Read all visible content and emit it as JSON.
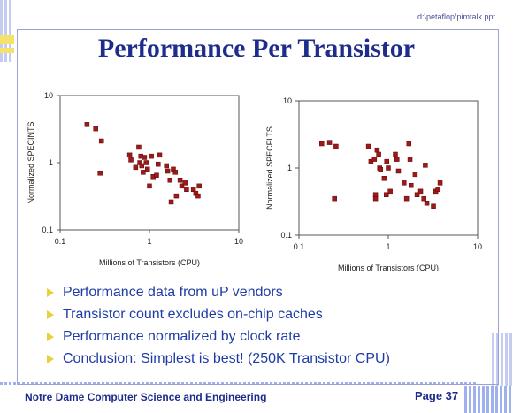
{
  "header": {
    "filename": "d:\\petaflop\\pimtalk.ppt",
    "title": "Performance Per Transistor"
  },
  "chart_data": [
    {
      "type": "scatter",
      "xlabel": "Millions of Transistors (CPU)",
      "ylabel": "Normalized SPECINTS",
      "xscale": "log",
      "yscale": "log",
      "xlim": [
        0.1,
        10
      ],
      "ylim": [
        0.1,
        10
      ],
      "xticks": [
        "0.1",
        "1",
        "10"
      ],
      "yticks": [
        "10",
        "1",
        "0.1"
      ],
      "grid": false,
      "marker_color": "#a01818",
      "points": [
        [
          0.2,
          3.7
        ],
        [
          0.25,
          3.2
        ],
        [
          0.29,
          2.1
        ],
        [
          0.28,
          0.7
        ],
        [
          0.6,
          1.3
        ],
        [
          0.62,
          1.1
        ],
        [
          0.7,
          0.85
        ],
        [
          0.76,
          1.7
        ],
        [
          0.78,
          1.0
        ],
        [
          0.8,
          1.25
        ],
        [
          0.82,
          0.9
        ],
        [
          0.85,
          0.72
        ],
        [
          0.88,
          1.2
        ],
        [
          0.92,
          1.0
        ],
        [
          0.95,
          0.8
        ],
        [
          1.0,
          0.45
        ],
        [
          1.05,
          1.25
        ],
        [
          1.1,
          0.62
        ],
        [
          1.2,
          0.65
        ],
        [
          1.25,
          0.95
        ],
        [
          1.3,
          1.3
        ],
        [
          1.55,
          0.9
        ],
        [
          1.6,
          0.75
        ],
        [
          1.7,
          0.55
        ],
        [
          1.75,
          0.26
        ],
        [
          1.85,
          0.8
        ],
        [
          1.95,
          0.72
        ],
        [
          2.0,
          0.32
        ],
        [
          2.2,
          0.55
        ],
        [
          2.3,
          0.45
        ],
        [
          2.5,
          0.5
        ],
        [
          2.6,
          0.4
        ],
        [
          3.1,
          0.4
        ],
        [
          3.3,
          0.35
        ],
        [
          3.5,
          0.32
        ],
        [
          3.6,
          0.45
        ]
      ]
    },
    {
      "type": "scatter",
      "xlabel": "Millions of Transistors (CPU)",
      "ylabel": "Normalized SPECFLTS",
      "xscale": "log",
      "yscale": "log",
      "xlim": [
        0.1,
        10
      ],
      "ylim": [
        0.1,
        10
      ],
      "xticks": [
        "0.1",
        "1",
        "10"
      ],
      "yticks": [
        "10",
        "1",
        "0.1"
      ],
      "grid": false,
      "marker_color": "#a01818",
      "points": [
        [
          0.18,
          2.3
        ],
        [
          0.22,
          2.4
        ],
        [
          0.26,
          2.1
        ],
        [
          0.25,
          0.35
        ],
        [
          0.6,
          2.1
        ],
        [
          0.64,
          1.25
        ],
        [
          0.7,
          1.35
        ],
        [
          0.72,
          0.35
        ],
        [
          0.72,
          0.4
        ],
        [
          0.75,
          1.85
        ],
        [
          0.78,
          1.6
        ],
        [
          0.8,
          1.0
        ],
        [
          0.82,
          0.95
        ],
        [
          0.9,
          0.7
        ],
        [
          0.95,
          0.4
        ],
        [
          0.96,
          1.25
        ],
        [
          1.0,
          1.0
        ],
        [
          1.05,
          0.45
        ],
        [
          1.2,
          1.6
        ],
        [
          1.25,
          1.35
        ],
        [
          1.3,
          0.9
        ],
        [
          1.5,
          0.6
        ],
        [
          1.6,
          0.35
        ],
        [
          1.7,
          2.3
        ],
        [
          1.75,
          1.35
        ],
        [
          1.8,
          0.55
        ],
        [
          2.0,
          0.8
        ],
        [
          2.1,
          0.4
        ],
        [
          2.3,
          0.45
        ],
        [
          2.5,
          0.35
        ],
        [
          2.6,
          1.1
        ],
        [
          2.7,
          0.3
        ],
        [
          3.2,
          0.27
        ],
        [
          3.4,
          0.45
        ],
        [
          3.6,
          0.48
        ],
        [
          3.8,
          0.6
        ]
      ]
    }
  ],
  "bullets": [
    "Performance data from uP vendors",
    "Transistor count excludes on-chip caches",
    "Performance normalized by clock rate",
    "Conclusion: Simplest is best! (250K Transistor CPU)"
  ],
  "footer": {
    "left": "Notre Dame Computer Science and Engineering",
    "right": "Page 37"
  }
}
